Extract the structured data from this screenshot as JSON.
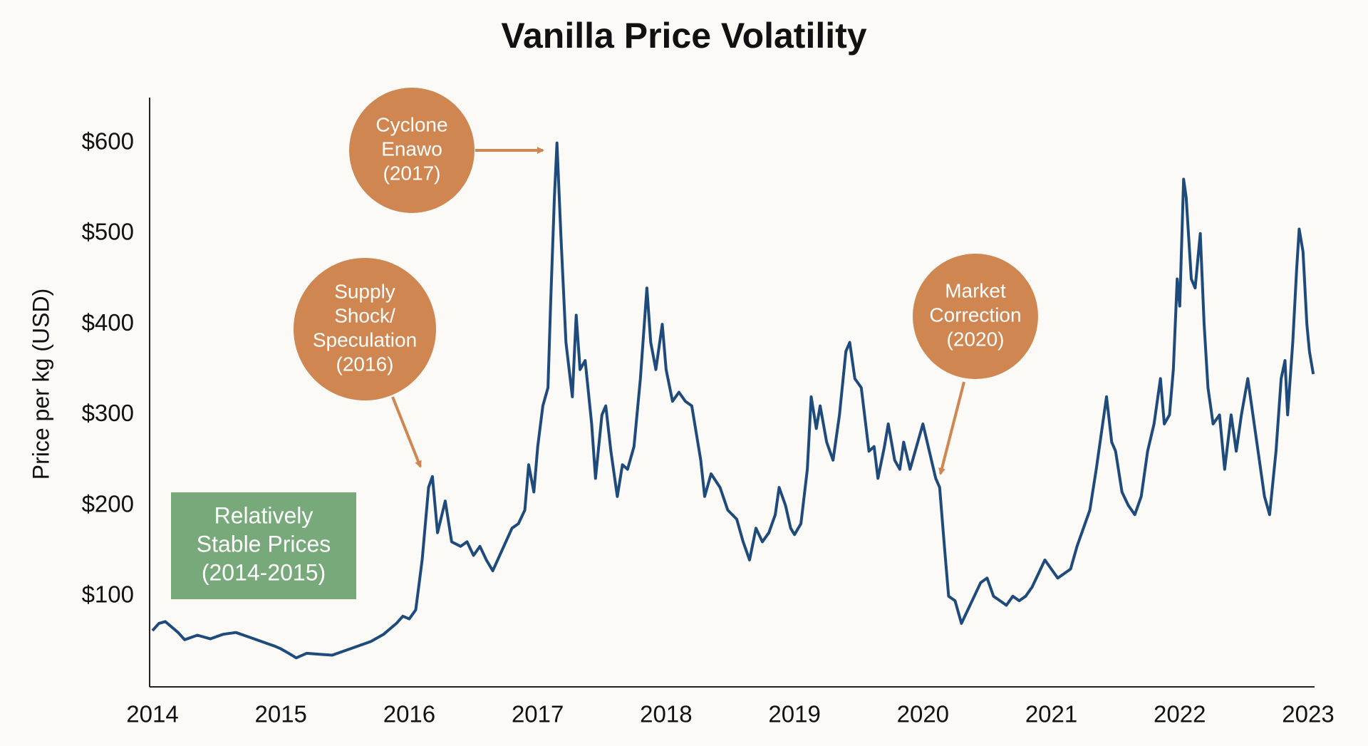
{
  "chart_data": {
    "type": "line",
    "title": "Vanilla Price Volatility",
    "y_label": "Price per kg (USD)",
    "color": "#1f4a7c",
    "xlim": [
      2014,
      2023.05
    ],
    "xticks": [
      2014,
      2015,
      2016,
      2017,
      2018,
      2019,
      2020,
      2021,
      2022,
      2023
    ],
    "ylim": [
      0,
      650
    ],
    "yticks": [
      {
        "value": 100,
        "label": "$100"
      },
      {
        "value": 200,
        "label": "$200"
      },
      {
        "value": 300,
        "label": "$300"
      },
      {
        "value": 400,
        "label": "$400"
      },
      {
        "value": 500,
        "label": "$500"
      },
      {
        "value": 600,
        "label": "$600"
      }
    ],
    "grid": false,
    "x": [
      2014.0,
      2014.05,
      2014.1,
      2014.2,
      2014.25,
      2014.35,
      2014.45,
      2014.55,
      2014.65,
      2014.75,
      2014.85,
      2014.95,
      2015.0,
      2015.05,
      2015.12,
      2015.2,
      2015.3,
      2015.4,
      2015.5,
      2015.6,
      2015.7,
      2015.8,
      2015.9,
      2015.95,
      2016.0,
      2016.05,
      2016.1,
      2016.15,
      2016.18,
      2016.22,
      2016.28,
      2016.33,
      2016.4,
      2016.45,
      2016.5,
      2016.55,
      2016.6,
      2016.65,
      2016.72,
      2016.8,
      2016.85,
      2016.9,
      2016.93,
      2016.97,
      2017.0,
      2017.04,
      2017.08,
      2017.1,
      2017.13,
      2017.15,
      2017.18,
      2017.22,
      2017.27,
      2017.3,
      2017.33,
      2017.37,
      2017.42,
      2017.45,
      2017.5,
      2017.53,
      2017.57,
      2017.62,
      2017.66,
      2017.7,
      2017.75,
      2017.8,
      2017.85,
      2017.88,
      2017.92,
      2017.97,
      2018.0,
      2018.05,
      2018.1,
      2018.15,
      2018.2,
      2018.27,
      2018.3,
      2018.35,
      2018.42,
      2018.48,
      2018.55,
      2018.6,
      2018.65,
      2018.7,
      2018.75,
      2018.8,
      2018.85,
      2018.88,
      2018.93,
      2018.97,
      2019.0,
      2019.05,
      2019.1,
      2019.13,
      2019.17,
      2019.2,
      2019.25,
      2019.3,
      2019.35,
      2019.4,
      2019.43,
      2019.47,
      2019.52,
      2019.58,
      2019.62,
      2019.65,
      2019.7,
      2019.73,
      2019.78,
      2019.82,
      2019.85,
      2019.9,
      2019.95,
      2020.0,
      2020.05,
      2020.1,
      2020.13,
      2020.17,
      2020.2,
      2020.25,
      2020.3,
      2020.35,
      2020.4,
      2020.45,
      2020.5,
      2020.55,
      2020.6,
      2020.65,
      2020.7,
      2020.75,
      2020.8,
      2020.85,
      2020.9,
      2020.95,
      2021.0,
      2021.05,
      2021.1,
      2021.15,
      2021.2,
      2021.25,
      2021.3,
      2021.35,
      2021.4,
      2021.43,
      2021.47,
      2021.5,
      2021.55,
      2021.6,
      2021.65,
      2021.7,
      2021.75,
      2021.8,
      2021.85,
      2021.88,
      2021.92,
      2021.95,
      2021.98,
      2022.0,
      2022.03,
      2022.05,
      2022.09,
      2022.12,
      2022.16,
      2022.19,
      2022.22,
      2022.26,
      2022.31,
      2022.35,
      2022.4,
      2022.44,
      2022.48,
      2022.53,
      2022.57,
      2022.62,
      2022.66,
      2022.7,
      2022.75,
      2022.79,
      2022.82,
      2022.84,
      2022.88,
      2022.91,
      2022.93,
      2022.96,
      2022.99,
      2023.01,
      2023.04
    ],
    "values": [
      62,
      70,
      72,
      60,
      52,
      57,
      53,
      58,
      60,
      55,
      50,
      45,
      42,
      38,
      32,
      37,
      36,
      35,
      40,
      45,
      50,
      58,
      70,
      78,
      75,
      85,
      140,
      220,
      232,
      170,
      205,
      160,
      155,
      160,
      145,
      155,
      140,
      128,
      150,
      175,
      180,
      195,
      245,
      215,
      265,
      310,
      330,
      420,
      540,
      600,
      500,
      380,
      320,
      410,
      350,
      360,
      290,
      230,
      300,
      310,
      260,
      210,
      245,
      240,
      265,
      340,
      440,
      380,
      350,
      400,
      350,
      315,
      325,
      315,
      310,
      250,
      210,
      235,
      220,
      195,
      185,
      160,
      140,
      175,
      160,
      170,
      190,
      220,
      200,
      175,
      168,
      180,
      240,
      320,
      285,
      310,
      270,
      250,
      300,
      370,
      380,
      340,
      330,
      260,
      265,
      230,
      265,
      290,
      250,
      240,
      270,
      240,
      265,
      290,
      260,
      230,
      220,
      150,
      100,
      95,
      70,
      85,
      100,
      115,
      120,
      100,
      95,
      90,
      100,
      95,
      100,
      110,
      125,
      140,
      130,
      120,
      125,
      130,
      155,
      175,
      195,
      240,
      290,
      320,
      270,
      260,
      215,
      200,
      190,
      210,
      260,
      290,
      340,
      290,
      300,
      350,
      450,
      420,
      560,
      540,
      450,
      440,
      500,
      400,
      330,
      290,
      300,
      240,
      300,
      260,
      300,
      340,
      300,
      250,
      210,
      190,
      260,
      340,
      360,
      300,
      380,
      460,
      505,
      480,
      400,
      370,
      345
    ],
    "annotations": [
      {
        "lines": [
          "Cyclone",
          "Enawo",
          "(2017)"
        ]
      },
      {
        "lines": [
          "Supply",
          "Shock/",
          "Speculation",
          "(2016)"
        ]
      },
      {
        "lines": [
          "Market",
          "Correction",
          "(2020)"
        ]
      },
      {
        "lines": [
          "Relatively",
          "Stable Prices",
          "(2014-2015)"
        ]
      }
    ]
  }
}
